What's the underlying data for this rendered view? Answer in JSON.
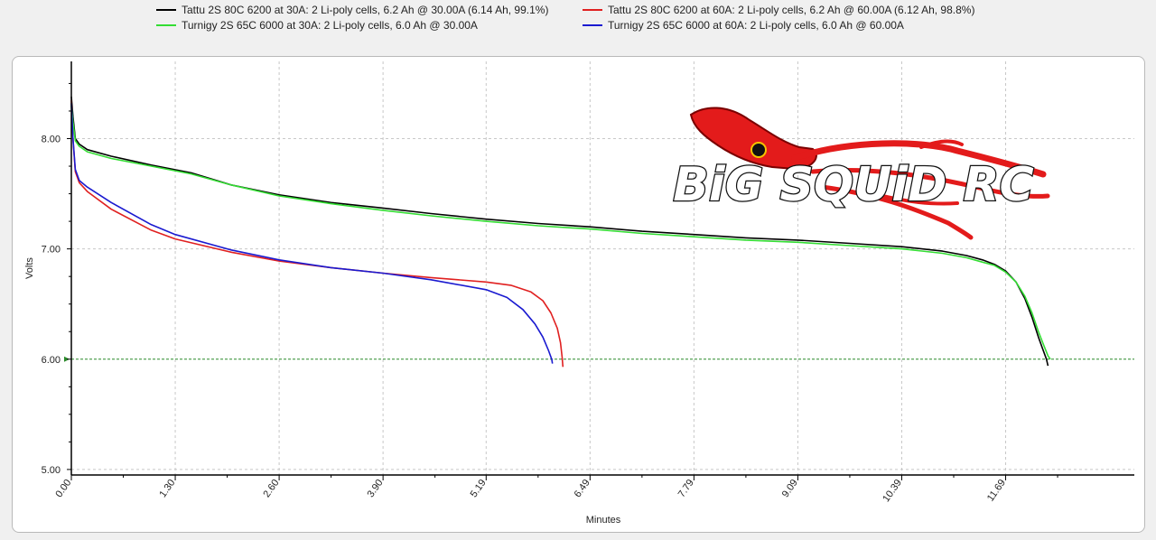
{
  "legend": {
    "items": [
      {
        "label": "Tattu 2S 80C 6200 at 30A: 2 Li-poly cells, 6.2 Ah @ 30.00A (6.14 Ah, 99.1%)",
        "color": "#000000"
      },
      {
        "label": "Tattu 2S 80C 6200 at 60A: 2 Li-poly cells, 6.2 Ah @ 60.00A (6.12 Ah, 98.8%)",
        "color": "#e02020"
      },
      {
        "label": "Turnigy 2S 65C 6000 at 30A: 2 Li-poly cells, 6.0 Ah @ 30.00A",
        "color": "#33dd33"
      },
      {
        "label": "Turnigy 2S 65C 6000 at 60A: 2 Li-poly cells, 6.0 Ah @ 60.00A",
        "color": "#1a1ad0"
      }
    ]
  },
  "logo": {
    "text": "BiG SQUiD RC",
    "icon": "squid-logo-icon",
    "color": "#e31b1b"
  },
  "chart_data": {
    "type": "line",
    "xlabel": "Minutes",
    "ylabel": "Volts",
    "xlim": [
      0,
      13.3
    ],
    "ylim": [
      4.95,
      8.7
    ],
    "x_ticks": [
      "0.00",
      "1.30",
      "2.60",
      "3.90",
      "5.19",
      "6.49",
      "7.79",
      "9.09",
      "10.39",
      "11.69"
    ],
    "y_ticks": [
      "5.00",
      "6.00",
      "7.00",
      "8.00"
    ],
    "grid": true,
    "cutoff_voltage": 6.0,
    "legend_position": "top",
    "series": [
      {
        "name": "Tattu 2S 80C 6200 at 30A: 2 Li-poly cells, 6.2 Ah @ 30.00A (6.14 Ah, 99.1%)",
        "color": "#000000",
        "x": [
          0,
          0.02,
          0.05,
          0.1,
          0.2,
          0.5,
          1.0,
          1.5,
          2.0,
          2.6,
          3.25,
          3.9,
          4.5,
          5.19,
          5.84,
          6.49,
          7.14,
          7.79,
          8.44,
          9.09,
          9.74,
          10.39,
          10.9,
          11.2,
          11.4,
          11.55,
          11.69,
          11.82,
          11.93,
          12.02,
          12.1,
          12.15,
          12.2,
          12.22
        ],
        "y": [
          8.38,
          8.2,
          8.0,
          7.95,
          7.9,
          7.84,
          7.76,
          7.69,
          7.58,
          7.49,
          7.42,
          7.37,
          7.32,
          7.27,
          7.23,
          7.2,
          7.16,
          7.13,
          7.1,
          7.08,
          7.05,
          7.02,
          6.98,
          6.94,
          6.9,
          6.86,
          6.8,
          6.7,
          6.55,
          6.38,
          6.2,
          6.1,
          6.0,
          5.94
        ]
      },
      {
        "name": "Tattu 2S 80C 6200 at 60A: 2 Li-poly cells, 6.2 Ah @ 60.00A (6.12 Ah, 98.8%)",
        "color": "#e02020",
        "x": [
          0,
          0.02,
          0.05,
          0.1,
          0.2,
          0.5,
          1.0,
          1.3,
          2.0,
          2.6,
          3.25,
          3.9,
          4.5,
          5.19,
          5.5,
          5.75,
          5.9,
          6.0,
          6.08,
          6.12,
          6.14,
          6.15
        ],
        "y": [
          8.35,
          8.0,
          7.7,
          7.6,
          7.52,
          7.36,
          7.17,
          7.09,
          6.97,
          6.89,
          6.83,
          6.78,
          6.74,
          6.7,
          6.67,
          6.61,
          6.53,
          6.42,
          6.28,
          6.15,
          6.02,
          5.93
        ]
      },
      {
        "name": "Turnigy 2S 65C 6000 at 30A: 2 Li-poly cells, 6.0 Ah @ 30.00A",
        "color": "#33dd33",
        "x": [
          0,
          0.02,
          0.05,
          0.1,
          0.2,
          0.5,
          1.0,
          1.5,
          2.0,
          2.6,
          3.25,
          3.9,
          4.5,
          5.19,
          5.84,
          6.49,
          7.14,
          7.79,
          8.44,
          9.09,
          9.74,
          10.39,
          10.9,
          11.2,
          11.4,
          11.55,
          11.69,
          11.82,
          11.93,
          12.02,
          12.1,
          12.17,
          12.22,
          12.25
        ],
        "y": [
          8.3,
          8.15,
          7.98,
          7.93,
          7.88,
          7.82,
          7.75,
          7.68,
          7.58,
          7.48,
          7.41,
          7.35,
          7.3,
          7.25,
          7.21,
          7.18,
          7.14,
          7.11,
          7.08,
          7.06,
          7.03,
          7.0,
          6.96,
          6.92,
          6.88,
          6.85,
          6.79,
          6.7,
          6.57,
          6.42,
          6.25,
          6.12,
          6.03,
          6.0
        ]
      },
      {
        "name": "Turnigy 2S 65C 6000 at 60A: 2 Li-poly cells, 6.0 Ah @ 60.00A",
        "color": "#1a1ad0",
        "x": [
          0,
          0.02,
          0.05,
          0.1,
          0.2,
          0.5,
          1.0,
          1.3,
          2.0,
          2.6,
          3.25,
          3.9,
          4.5,
          5.19,
          5.45,
          5.65,
          5.8,
          5.9,
          5.97,
          6.01,
          6.02
        ],
        "y": [
          8.32,
          8.0,
          7.72,
          7.62,
          7.56,
          7.42,
          7.22,
          7.13,
          6.99,
          6.9,
          6.83,
          6.78,
          6.72,
          6.63,
          6.56,
          6.45,
          6.32,
          6.2,
          6.08,
          6.0,
          5.96
        ]
      }
    ]
  }
}
